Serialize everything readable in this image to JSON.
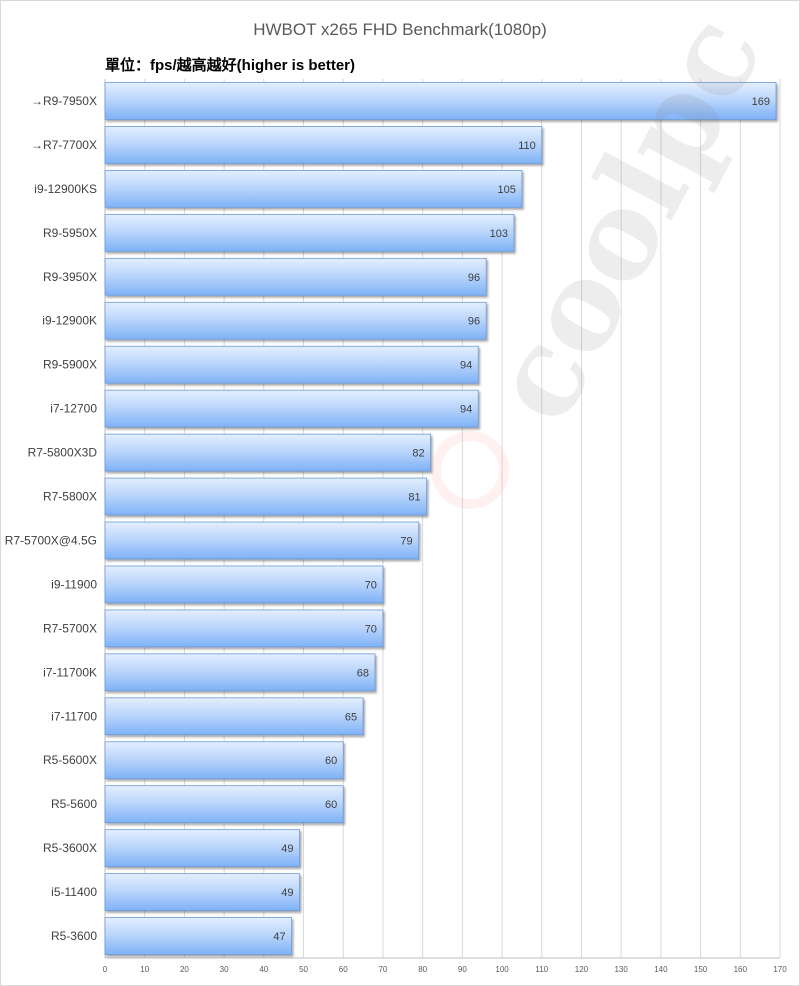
{
  "chart_data": {
    "type": "bar",
    "orientation": "horizontal",
    "title": "HWBOT x265 FHD Benchmark(1080p)",
    "subtitle": "單位：fps/越高越好(higher is better)",
    "xlabel": "",
    "ylabel": "",
    "xlim": [
      0,
      170
    ],
    "x_ticks": [
      0,
      10,
      20,
      30,
      40,
      50,
      60,
      70,
      80,
      90,
      100,
      110,
      120,
      130,
      140,
      150,
      160,
      170
    ],
    "grid": true,
    "legend": "none",
    "categories": [
      "→R9-7950X",
      "→R7-7700X",
      "i9-12900KS",
      "R9-5950X",
      "R9-3950X",
      "i9-12900K",
      "R9-5900X",
      "i7-12700",
      "R7-5800X3D",
      "R7-5800X",
      "R7-5700X@4.5G",
      "i9-11900",
      "R7-5700X",
      "i7-11700K",
      "i7-11700",
      "R5-5600X",
      "R5-5600",
      "R5-3600X",
      "i5-11400",
      "R5-3600"
    ],
    "values": [
      169,
      110,
      105,
      103,
      96,
      96,
      94,
      94,
      82,
      81,
      79,
      70,
      70,
      68,
      65,
      60,
      60,
      49,
      49,
      47
    ],
    "colors": {
      "bar_light": "#dbe9ff",
      "bar_dark": "#7fb2f7",
      "bar_border": "#6a9ad8",
      "grid": "#d9d9d9",
      "axis": "#bfbfbf"
    }
  },
  "watermark": {
    "text": "coolpc"
  }
}
